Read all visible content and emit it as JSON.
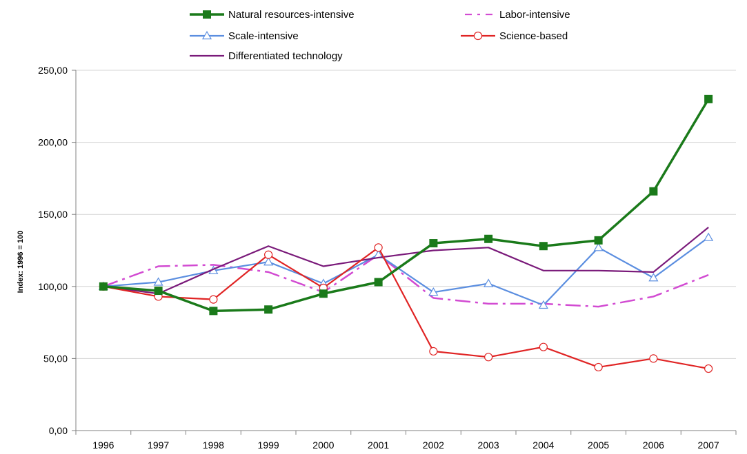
{
  "chart_data": {
    "type": "line",
    "title": "",
    "xlabel": "",
    "ylabel": "Index: 1996 = 100",
    "ylim": [
      0,
      250
    ],
    "y_ticks": [
      "0,00",
      "50,00",
      "100,00",
      "150,00",
      "200,00",
      "250,00"
    ],
    "y_tick_values": [
      0,
      50,
      100,
      150,
      200,
      250
    ],
    "categories": [
      "1996",
      "1997",
      "1998",
      "1999",
      "2000",
      "2001",
      "2002",
      "2003",
      "2004",
      "2005",
      "2006",
      "2007"
    ],
    "grid": "horizontal",
    "legend_position": "top",
    "series": [
      {
        "name": "Natural resources-intensive",
        "color": "#1a7a1a",
        "dash": "solid",
        "marker": "square-filled",
        "values": [
          100,
          97,
          83,
          84,
          95,
          103,
          130,
          133,
          128,
          132,
          166,
          230
        ]
      },
      {
        "name": "Labor-intensive",
        "color": "#d24bd2",
        "dash": "dashdot",
        "marker": "none",
        "values": [
          100,
          114,
          115,
          110,
          96,
          122,
          92,
          88,
          88,
          86,
          93,
          108
        ]
      },
      {
        "name": "Scale-intensive",
        "color": "#5b8ee0",
        "dash": "solid",
        "marker": "triangle-open",
        "values": [
          100,
          103,
          111,
          117,
          102,
          122,
          96,
          102,
          87,
          127,
          106,
          134
        ]
      },
      {
        "name": "Science-based",
        "color": "#e02424",
        "dash": "solid",
        "marker": "circle-open",
        "values": [
          100,
          93,
          91,
          122,
          99,
          127,
          55,
          51,
          58,
          44,
          50,
          43
        ]
      },
      {
        "name": "Differentiated technology",
        "color": "#7a1a7a",
        "dash": "solid",
        "marker": "none",
        "values": [
          100,
          95,
          112,
          128,
          114,
          120,
          125,
          127,
          111,
          111,
          110,
          141
        ]
      }
    ]
  }
}
